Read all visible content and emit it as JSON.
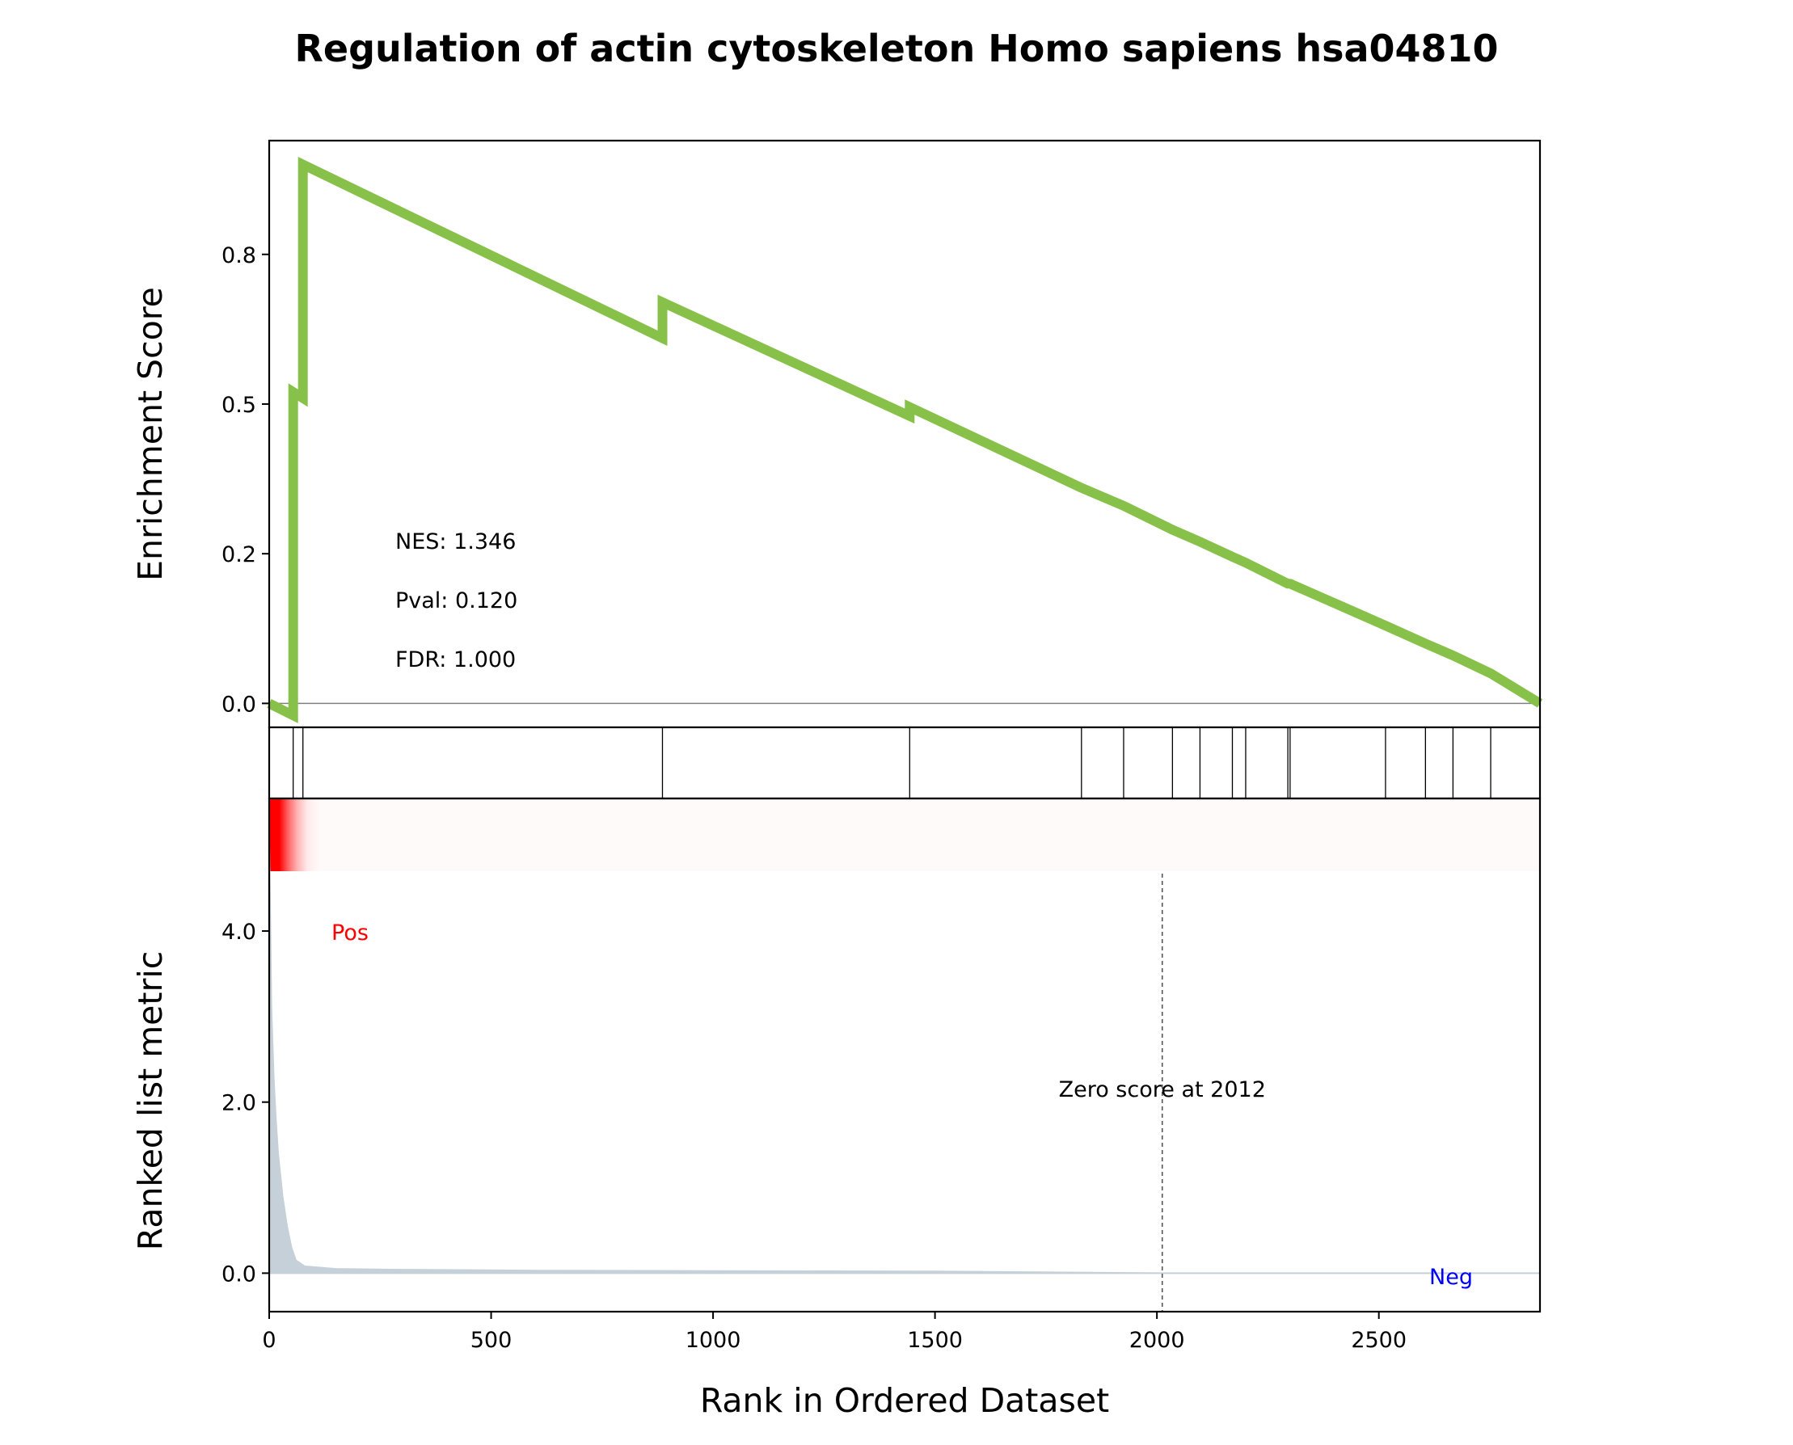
{
  "chart_data": {
    "type": "line",
    "title": "Regulation of actin cytoskeleton Homo sapiens hsa04810",
    "colors": {
      "es_line": "#88c14a",
      "pos_text": "#ff0000",
      "neg_text": "#0000ff",
      "metric_fill": "#c5d0d9",
      "heat": "#ff0000",
      "zero_line": "#555555",
      "hit_line": "#000000"
    },
    "xlabel": "Rank in Ordered Dataset",
    "xlim": [
      0,
      2863
    ],
    "xticks": [
      {
        "value": 0,
        "label": "0"
      },
      {
        "value": 500,
        "label": "500"
      },
      {
        "value": 1000,
        "label": "1000"
      },
      {
        "value": 1500,
        "label": "1500"
      },
      {
        "value": 2000,
        "label": "2000"
      },
      {
        "value": 2500,
        "label": "2500"
      }
    ],
    "es_panel": {
      "ylabel": "Enrichment Score",
      "ylim": [
        -0.04,
        0.94
      ],
      "yticks": [
        {
          "value": 0.0,
          "label": "0.0"
        },
        {
          "value": 0.25,
          "label": "0.2"
        },
        {
          "value": 0.5,
          "label": "0.5"
        },
        {
          "value": 0.75,
          "label": "0.8"
        }
      ],
      "stats": [
        "NES: 1.346",
        "Pval: 0.120",
        "FDR: 1.000"
      ],
      "running_es": [
        [
          0,
          0.0
        ],
        [
          54,
          -0.02
        ],
        [
          54,
          0.52
        ],
        [
          76,
          0.51
        ],
        [
          76,
          0.9
        ],
        [
          886,
          0.61
        ],
        [
          886,
          0.67
        ],
        [
          1443,
          0.48
        ],
        [
          1443,
          0.495
        ],
        [
          1830,
          0.36
        ],
        [
          1830,
          0.36
        ],
        [
          1925,
          0.33
        ],
        [
          1925,
          0.33
        ],
        [
          2035,
          0.29
        ],
        [
          2097,
          0.27
        ],
        [
          2170,
          0.245
        ],
        [
          2200,
          0.235
        ],
        [
          2295,
          0.2
        ],
        [
          2300,
          0.2
        ],
        [
          2515,
          0.13
        ],
        [
          2605,
          0.1
        ],
        [
          2667,
          0.08
        ],
        [
          2752,
          0.05
        ],
        [
          2863,
          0.0
        ]
      ]
    },
    "hits": [
      54,
      76,
      886,
      1443,
      1830,
      1925,
      2035,
      2097,
      2170,
      2200,
      2295,
      2300,
      2515,
      2605,
      2667,
      2752
    ],
    "metric_panel": {
      "ylabel": "Ranked list metric",
      "ylim": [
        -0.45,
        5.55
      ],
      "yticks": [
        {
          "value": 0.0,
          "label": "0.0"
        },
        {
          "value": 2.0,
          "label": "2.0"
        },
        {
          "value": 4.0,
          "label": "4.0"
        }
      ],
      "pos_label": "Pos",
      "neg_label": "Neg",
      "zero_score_label": "Zero score at 2012",
      "zero_score_rank": 2012,
      "metric": [
        [
          0,
          5.0
        ],
        [
          2,
          4.3
        ],
        [
          5,
          3.1
        ],
        [
          10,
          2.3
        ],
        [
          15,
          1.8
        ],
        [
          20,
          1.4
        ],
        [
          30,
          0.9
        ],
        [
          40,
          0.55
        ],
        [
          50,
          0.3
        ],
        [
          60,
          0.15
        ],
        [
          80,
          0.08
        ],
        [
          150,
          0.05
        ],
        [
          300,
          0.04
        ],
        [
          600,
          0.03
        ],
        [
          1000,
          0.025
        ],
        [
          1500,
          0.02
        ],
        [
          2012,
          0.0
        ],
        [
          2863,
          0.0
        ]
      ]
    }
  }
}
